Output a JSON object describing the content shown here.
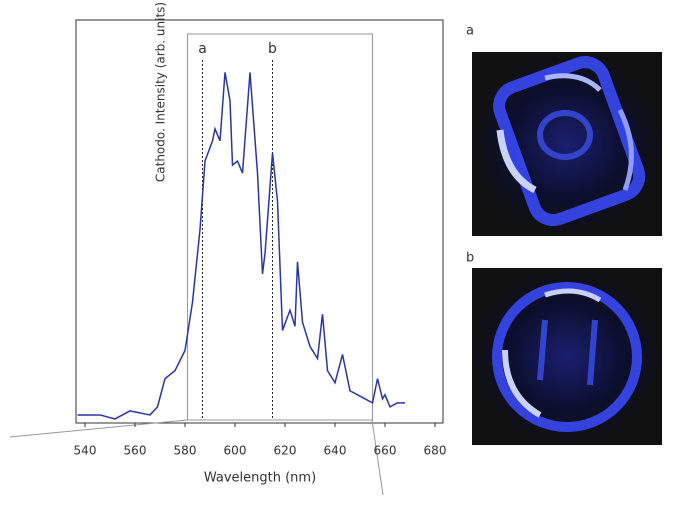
{
  "chart_data": {
    "type": "line",
    "xlabel": "Wavelength (nm)",
    "ylabel": "Cathodo. Intensity (arb. units)",
    "xlim": [
      536.4,
      683.2
    ],
    "ylim": [
      0,
      100
    ],
    "xticks": [
      540,
      560,
      580,
      600,
      620,
      640,
      660,
      680
    ],
    "selection": [
      581,
      655
    ],
    "markers": [
      {
        "label": "a",
        "x": 587
      },
      {
        "label": "b",
        "x": 615
      }
    ],
    "series": [
      {
        "color": "#2a35a8",
        "x": [
          537,
          546,
          552,
          558,
          566,
          569,
          572,
          576,
          580,
          583,
          586,
          588,
          591,
          592,
          594,
          596,
          598,
          599,
          601,
          603,
          606,
          609,
          611,
          612,
          615,
          617,
          619,
          622,
          624,
          625,
          627,
          630,
          633,
          635,
          637,
          640,
          643,
          646,
          652,
          655,
          657,
          659,
          660,
          662,
          665,
          668
        ],
        "values": [
          2,
          2,
          1,
          3,
          2,
          4,
          11,
          13,
          18,
          30,
          48,
          65,
          70,
          73,
          70,
          87,
          80,
          64,
          65,
          62,
          87,
          62,
          37,
          42,
          67,
          55,
          23,
          28,
          24,
          40,
          25,
          19,
          16,
          27,
          13,
          10,
          17,
          8,
          6,
          5,
          11,
          6,
          7,
          4,
          5,
          5
        ]
      }
    ]
  },
  "panels": [
    {
      "label": "a"
    },
    {
      "label": "b"
    }
  ]
}
